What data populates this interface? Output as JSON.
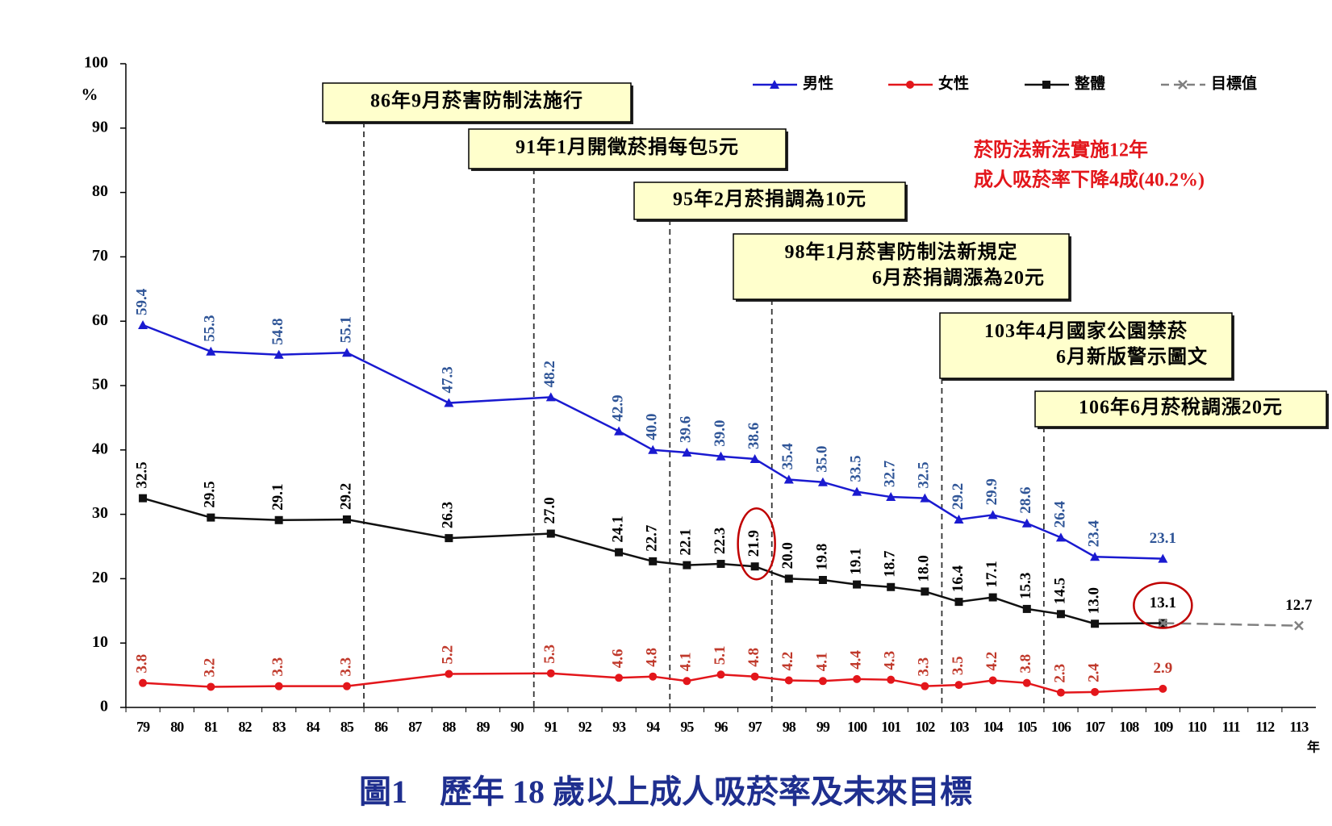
{
  "chart_data": {
    "type": "line",
    "title": "圖1　歷年 18 歲以上成人吸菸率及未來目標",
    "y_label": "%",
    "x_label": "年",
    "x": [
      79,
      81,
      83,
      85,
      88,
      91,
      93,
      94,
      95,
      96,
      97,
      98,
      99,
      100,
      101,
      102,
      103,
      104,
      105,
      106,
      107,
      109,
      113
    ],
    "xlim": [
      78.5,
      113.5
    ],
    "xticks": [
      79,
      80,
      81,
      82,
      83,
      84,
      85,
      86,
      87,
      88,
      89,
      90,
      91,
      92,
      93,
      94,
      95,
      96,
      97,
      98,
      99,
      100,
      101,
      102,
      103,
      104,
      105,
      106,
      107,
      108,
      109,
      110,
      111,
      112,
      113
    ],
    "ylim": [
      0,
      100
    ],
    "yticks": [
      0,
      10,
      20,
      30,
      40,
      50,
      60,
      70,
      80,
      90,
      100
    ],
    "grid": false,
    "legend": "top-right",
    "series": [
      {
        "name": "男性",
        "color": "#1a1ad0",
        "label_color": "#2f5597",
        "marker": "triangle",
        "values": [
          59.4,
          55.3,
          54.8,
          55.1,
          47.3,
          48.2,
          42.9,
          40.0,
          39.6,
          39.0,
          38.6,
          35.4,
          35.0,
          33.5,
          32.7,
          32.5,
          29.2,
          29.9,
          28.6,
          26.4,
          23.4,
          23.1,
          null
        ],
        "value_labels": [
          "59.4",
          "55.3",
          "54.8",
          "55.1",
          "47.3",
          "48.2",
          "42.9",
          "40.0",
          "39.6",
          "39.0",
          "38.6",
          "35.4",
          "35.0",
          "33.5",
          "32.7",
          "32.5",
          "29.2",
          "29.9",
          "28.6",
          "26.4",
          "23.4",
          "23.1",
          null
        ]
      },
      {
        "name": "女性",
        "color": "#e3161b",
        "label_color": "#c0392b",
        "marker": "circle",
        "values": [
          3.8,
          3.2,
          3.3,
          3.3,
          5.2,
          5.3,
          4.6,
          4.8,
          4.1,
          5.1,
          4.8,
          4.2,
          4.1,
          4.4,
          4.3,
          3.3,
          3.5,
          4.2,
          3.8,
          2.3,
          2.4,
          2.9,
          null
        ],
        "value_labels": [
          "3.8",
          "3.2",
          "3.3",
          "3.3",
          "5.2",
          "5.3",
          "4.6",
          "4.8",
          "4.1",
          "5.1",
          "4.8",
          "4.2",
          "4.1",
          "4.4",
          "4.3",
          "3.3",
          "3.5",
          "4.2",
          "3.8",
          "2.3",
          "2.4",
          "2.9",
          null
        ]
      },
      {
        "name": "整體",
        "color": "#111111",
        "label_color": "#000000",
        "marker": "square",
        "values": [
          32.5,
          29.5,
          29.1,
          29.2,
          26.3,
          27.0,
          24.1,
          22.7,
          22.1,
          22.3,
          21.9,
          20.0,
          19.8,
          19.1,
          18.7,
          18.0,
          16.4,
          17.1,
          15.3,
          14.5,
          13.0,
          13.1,
          null
        ],
        "value_labels": [
          "32.5",
          "29.5",
          "29.1",
          "29.2",
          "26.3",
          "27.0",
          "24.1",
          "22.7",
          "22.1",
          "22.3",
          "21.9",
          "20.0",
          "19.8",
          "19.1",
          "18.7",
          "18.0",
          "16.4",
          "17.1",
          "15.3",
          "14.5",
          "13.0",
          "13.1",
          null
        ]
      },
      {
        "name": "目標值",
        "color": "#808080",
        "label_color": "#000000",
        "marker": "x",
        "dashed": true,
        "values": [
          null,
          null,
          null,
          null,
          null,
          null,
          null,
          null,
          null,
          null,
          null,
          null,
          null,
          null,
          null,
          null,
          null,
          null,
          null,
          null,
          null,
          13.1,
          12.7
        ],
        "value_labels": [
          null,
          null,
          null,
          null,
          null,
          null,
          null,
          null,
          null,
          null,
          null,
          null,
          null,
          null,
          null,
          null,
          null,
          null,
          null,
          null,
          null,
          null,
          "12.7"
        ]
      }
    ],
    "annotations": [
      {
        "lines": [
          "86年9月菸害防制法施行"
        ],
        "x": 85.5
      },
      {
        "lines": [
          "91年1月開徵菸捐每包5元"
        ],
        "x": 90.5
      },
      {
        "lines": [
          "95年2月菸捐調為10元"
        ],
        "x": 94.5
      },
      {
        "lines": [
          "98年1月菸害防制法新規定",
          "6月菸捐調漲為20元"
        ],
        "x": 97.5
      },
      {
        "lines": [
          "103年4月國家公園禁菸",
          "6月新版警示圖文"
        ],
        "x": 102.5
      },
      {
        "lines": [
          "106年6月菸稅調漲20元"
        ],
        "x": 105.5
      }
    ],
    "note": [
      "菸防法新法實施12年",
      "成人吸菸率下降4成(40.2%)"
    ]
  }
}
